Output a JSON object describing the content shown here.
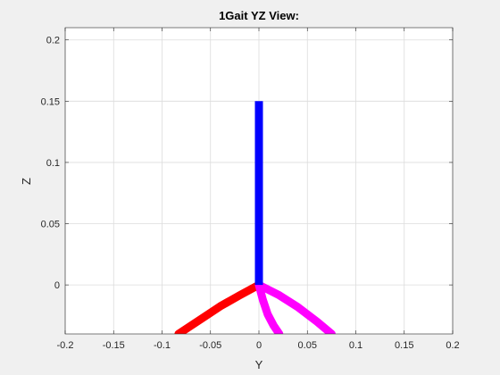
{
  "chart_data": {
    "type": "line",
    "title": "1Gait YZ View:",
    "xlabel": "Y",
    "ylabel": "Z",
    "xlim": [
      -0.2,
      0.2
    ],
    "ylim": [
      -0.04,
      0.21
    ],
    "xticks": [
      -0.2,
      -0.15,
      -0.1,
      -0.05,
      0,
      0.05,
      0.1,
      0.15,
      0.2
    ],
    "xtick_labels": [
      "-0.2",
      "-0.15",
      "-0.1",
      "-0.05",
      "0",
      "0.05",
      "0.1",
      "0.15",
      "0.2"
    ],
    "yticks": [
      0,
      0.05,
      0.1,
      0.15,
      0.2
    ],
    "ytick_labels": [
      "0",
      "0.05",
      "0.1",
      "0.15",
      "0.2"
    ],
    "grid": true,
    "background": "#f0f0f0",
    "series": [
      {
        "color": "#0000ff",
        "x": [
          0,
          0
        ],
        "y": [
          0,
          0.15
        ]
      },
      {
        "color": "#ff0000",
        "x": [
          0,
          -0.02,
          -0.04,
          -0.06,
          -0.083
        ],
        "y": [
          0,
          -0.0085,
          -0.0175,
          -0.028,
          -0.04
        ]
      },
      {
        "color": "#ff00ff",
        "x": [
          0,
          0.004,
          0.009,
          0.015,
          0.021
        ],
        "y": [
          0,
          -0.012,
          -0.024,
          -0.033,
          -0.04
        ]
      },
      {
        "color": "#ff00ff",
        "x": [
          0,
          0.02,
          0.04,
          0.06,
          0.075
        ],
        "y": [
          0,
          -0.008,
          -0.018,
          -0.03,
          -0.04
        ]
      }
    ]
  }
}
